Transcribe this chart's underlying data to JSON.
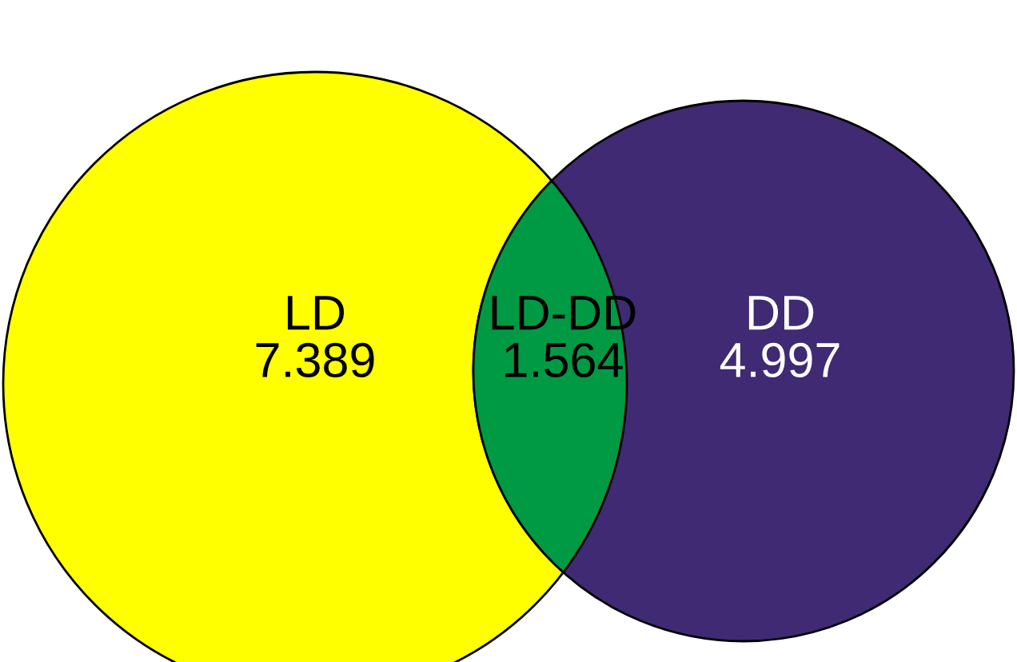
{
  "chart_data": {
    "type": "other",
    "categories": [
      "LD",
      "LD-DD",
      "DD"
    ],
    "values": [
      7.389,
      1.564,
      4.997
    ],
    "colors": [
      "#ffff00",
      "#009a44",
      "#3f2a73"
    ],
    "data_labels": true
  }
}
